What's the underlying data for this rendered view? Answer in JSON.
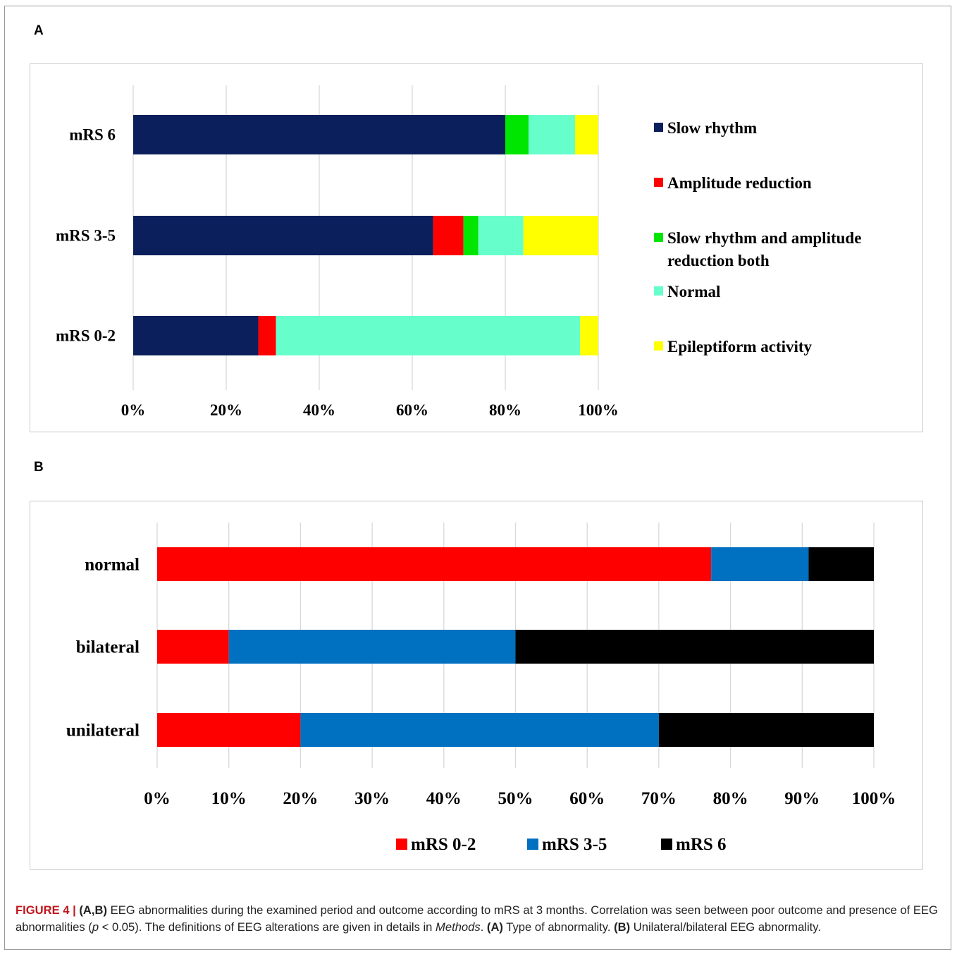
{
  "panels": {
    "a_label": "A",
    "b_label": "B"
  },
  "chart_data": [
    {
      "type": "bar",
      "stacked": true,
      "orientation": "horizontal",
      "percent": true,
      "categories": [
        "mRS 6",
        "mRS 3-5",
        "mRS 0-2"
      ],
      "xlim": [
        0,
        100
      ],
      "xticks": [
        "0%",
        "20%",
        "40%",
        "60%",
        "80%",
        "100%"
      ],
      "grid": true,
      "legend_position": "right",
      "series": [
        {
          "name": "Slow rhythm",
          "color": "#0b1f5c",
          "values": [
            80.0,
            64.5,
            26.9
          ]
        },
        {
          "name": "Amplitude reduction",
          "color": "#ff0000",
          "values": [
            0.0,
            6.5,
            3.8
          ]
        },
        {
          "name": "Slow rhythm and amplitude reduction both",
          "color": "#00e600",
          "values": [
            5.0,
            3.2,
            0.0
          ]
        },
        {
          "name": "Normal",
          "color": "#66ffcc",
          "values": [
            10.0,
            9.7,
            65.4
          ]
        },
        {
          "name": "Epileptiform activity",
          "color": "#ffff00",
          "values": [
            5.0,
            16.1,
            3.9
          ]
        }
      ],
      "legend_lines": [
        [
          "Slow rhythm"
        ],
        [
          "Amplitude reduction"
        ],
        [
          "Slow rhythm and amplitude",
          "reduction both"
        ],
        [
          "Normal"
        ],
        [
          "Epileptiform activity"
        ]
      ]
    },
    {
      "type": "bar",
      "stacked": true,
      "orientation": "horizontal",
      "percent": true,
      "categories": [
        "normal",
        "bilateral",
        "unilateral"
      ],
      "xlim": [
        0,
        100
      ],
      "xticks": [
        "0%",
        "10%",
        "20%",
        "30%",
        "40%",
        "50%",
        "60%",
        "70%",
        "80%",
        "90%",
        "100%"
      ],
      "grid": true,
      "legend_position": "bottom",
      "series": [
        {
          "name": "mRS 0-2",
          "color": "#ff0000",
          "values": [
            77.3,
            10.0,
            20.0
          ]
        },
        {
          "name": "mRS 3-5",
          "color": "#0070c0",
          "values": [
            13.6,
            40.0,
            50.0
          ]
        },
        {
          "name": "mRS 6",
          "color": "#000000",
          "values": [
            9.1,
            50.0,
            30.0
          ]
        }
      ]
    }
  ],
  "caption": {
    "figure_label": "FIGURE 4 |",
    "panels_ref": "(A,B)",
    "text1": " EEG abnormalities during the examined period and outcome according to mRS at 3 months. Correlation was seen between poor outcome and presence of EEG abnormalities (",
    "p_symbol": "p",
    "text2": " < 0.05). The definitions of EEG alterations are given in details in ",
    "methods": "Methods",
    "text3": ". ",
    "a_ref": "(A)",
    "a_text": " Type of abnormality. ",
    "b_ref": "(B)",
    "b_text": " Unilateral/bilateral EEG abnormality."
  }
}
